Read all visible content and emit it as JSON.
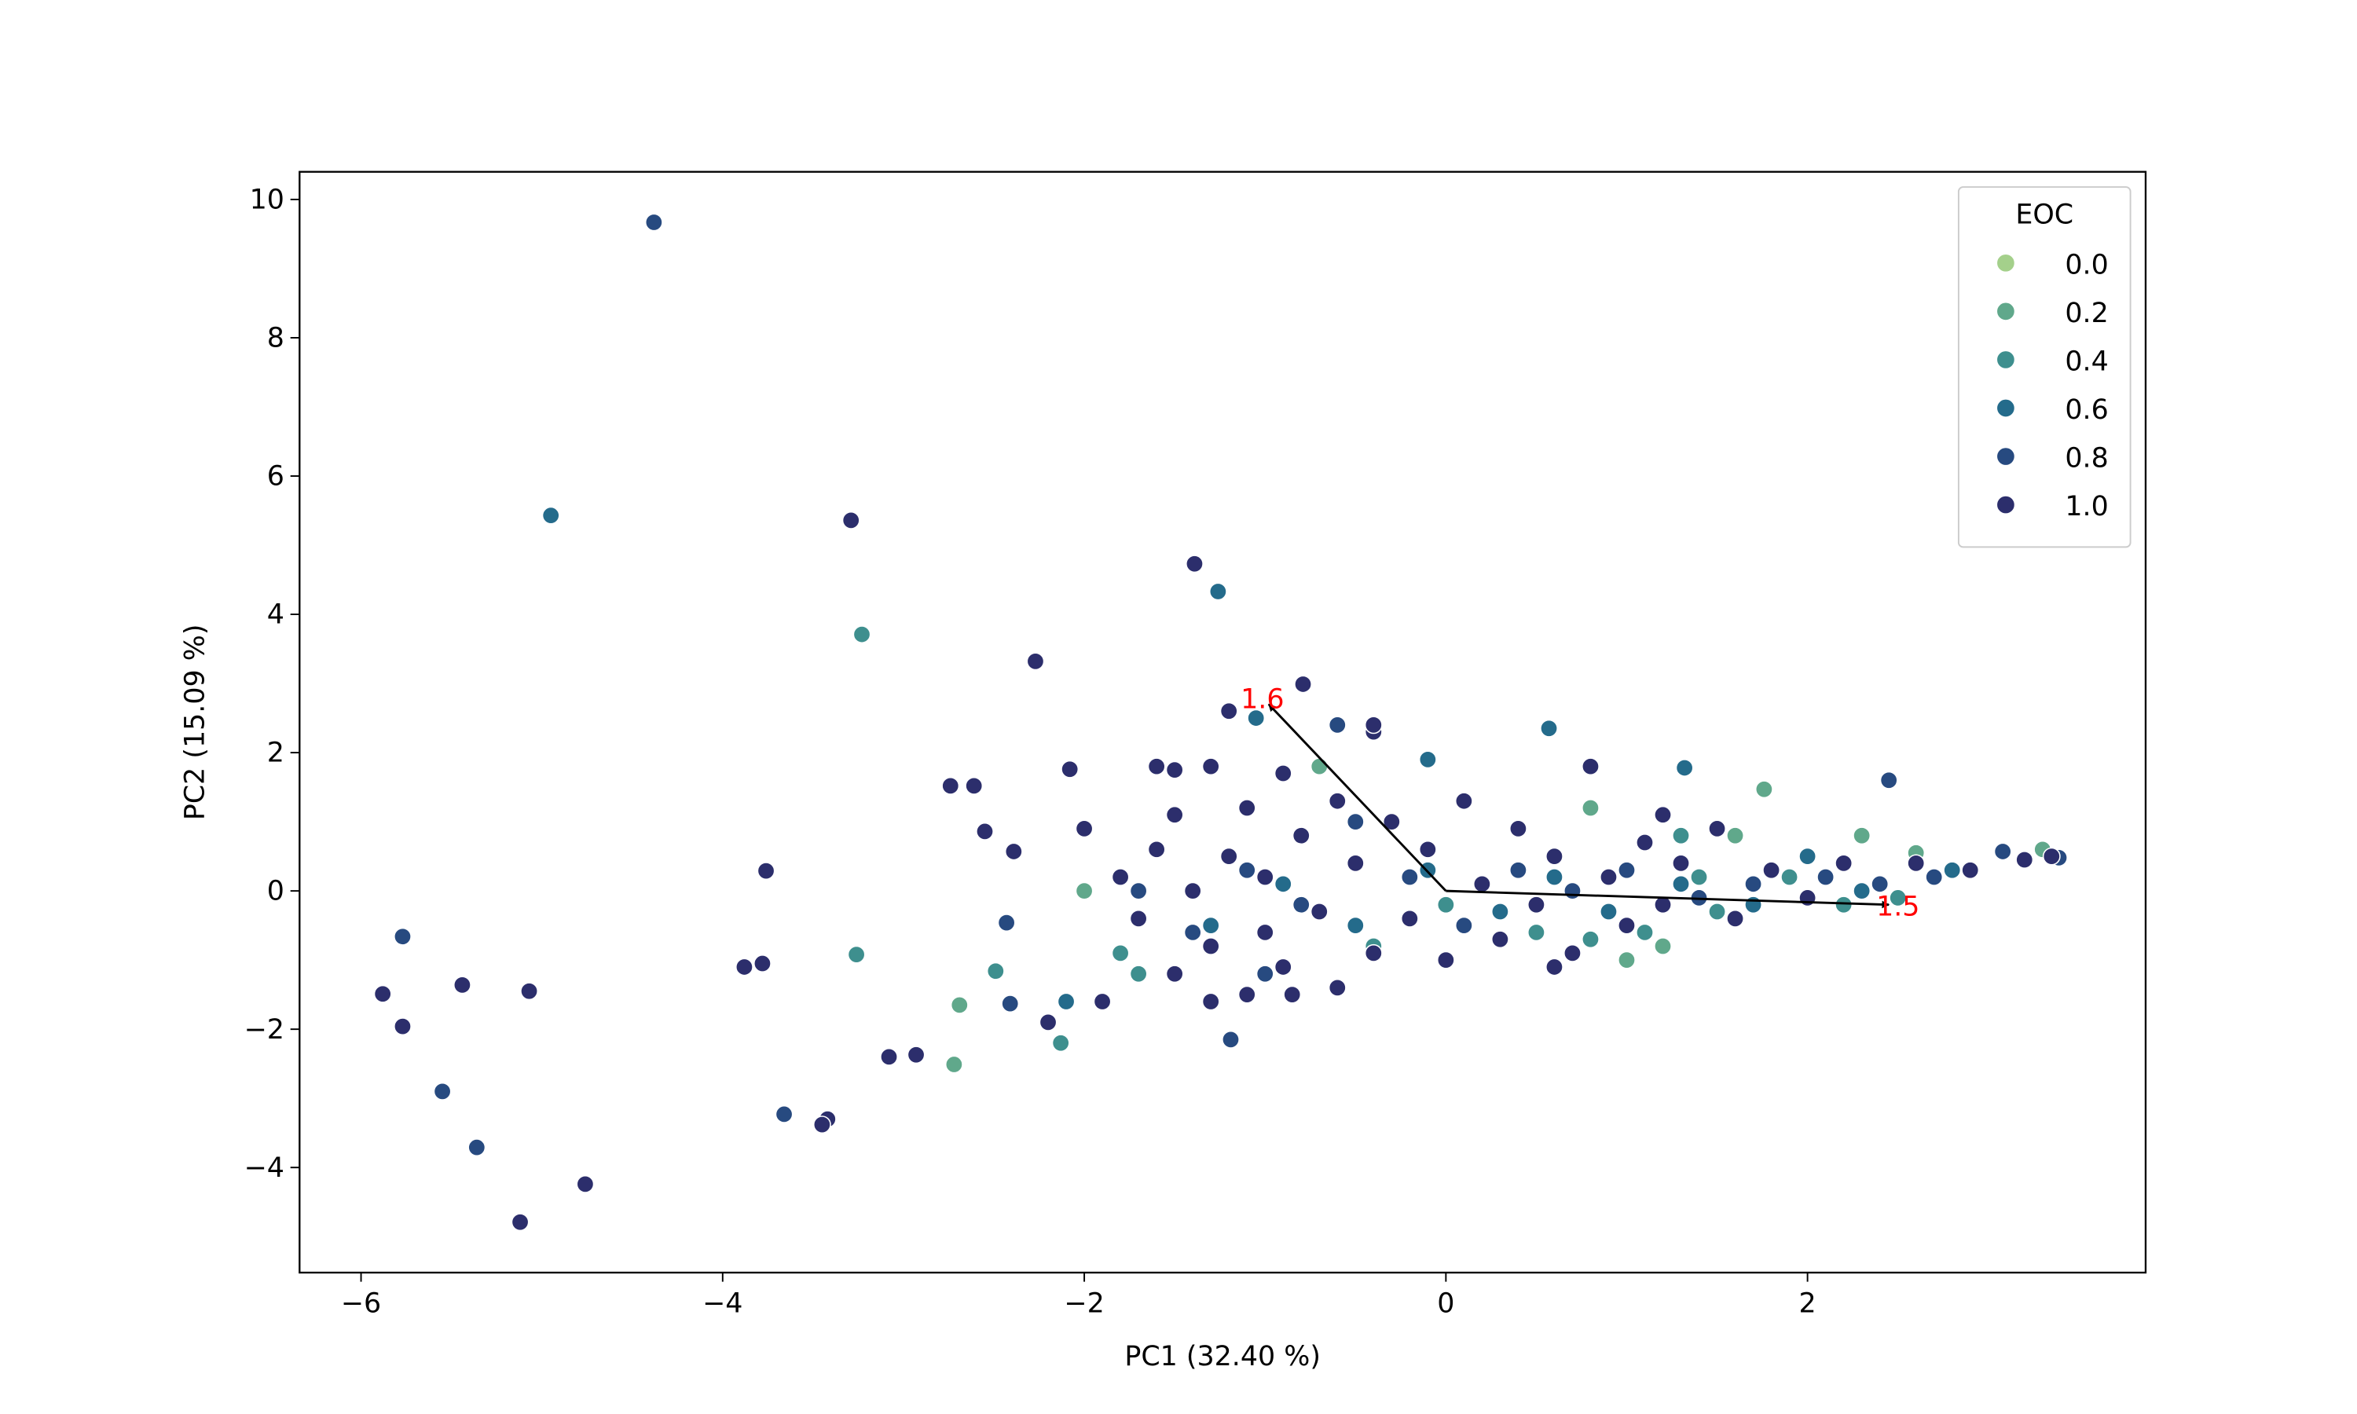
{
  "chart_data": {
    "type": "scatter",
    "x_label": "PC1 (32.40 %)",
    "y_label": "PC2 (15.09 %)",
    "xlim": [
      -6.34,
      3.87
    ],
    "ylim": [
      -5.52,
      10.4
    ],
    "xticks": [
      {
        "value": -6,
        "label": "−6"
      },
      {
        "value": -4,
        "label": "−4"
      },
      {
        "value": -2,
        "label": "−2"
      },
      0,
      2
    ],
    "yticks": [
      {
        "value": -4,
        "label": "−4"
      },
      {
        "value": -2,
        "label": "−2"
      },
      0,
      2,
      4,
      6,
      8,
      10
    ],
    "grid": false,
    "legend": {
      "title": "EOC",
      "corner": "upper right"
    },
    "series": [
      {
        "name": "0.0",
        "color": "#a4d08b",
        "x": [],
        "y": []
      },
      {
        "name": "0.2",
        "color": "#60a88b",
        "x": [
          -2.72,
          -2.69,
          1.76,
          1.0,
          1.6,
          2.3,
          3.3,
          2.9,
          -2.0,
          0.8,
          -0.7,
          2.6,
          1.2
        ],
        "y": [
          -2.51,
          -1.65,
          1.47,
          -1.0,
          0.8,
          0.8,
          0.6,
          0.3,
          0.0,
          1.2,
          1.8,
          0.55,
          -0.8
        ]
      },
      {
        "name": "0.4",
        "color": "#3e8f8e",
        "x": [
          -3.23,
          -3.26,
          -2.49,
          -2.13,
          -0.4,
          0.0,
          0.5,
          0.8,
          1.1,
          1.4,
          1.5,
          1.9,
          2.2,
          2.5,
          1.3,
          -1.8,
          -1.7
        ],
        "y": [
          3.71,
          -0.92,
          -1.16,
          -2.2,
          -0.8,
          -0.2,
          -0.6,
          -0.7,
          -0.6,
          0.2,
          -0.3,
          0.2,
          -0.2,
          -0.1,
          0.8,
          -0.9,
          -1.2
        ]
      },
      {
        "name": "0.6",
        "color": "#246b8b",
        "x": [
          -4.95,
          -1.26,
          0.57,
          1.32,
          -1.3,
          -0.9,
          -0.5,
          -0.1,
          0.3,
          0.6,
          0.9,
          1.3,
          1.7,
          2.0,
          2.3,
          2.8,
          -1.05,
          -2.1,
          -0.1
        ],
        "y": [
          5.43,
          4.33,
          2.35,
          1.78,
          -0.5,
          0.1,
          -0.5,
          0.3,
          -0.3,
          0.2,
          -0.3,
          0.1,
          -0.2,
          0.5,
          0.0,
          0.3,
          2.5,
          -1.6,
          1.9
        ]
      },
      {
        "name": "0.8",
        "color": "#274a80",
        "x": [
          -4.38,
          -5.77,
          -5.55,
          -5.36,
          -3.66,
          -2.43,
          -2.41,
          -1.19,
          2.45,
          3.39,
          3.08,
          -1.7,
          -1.4,
          -1.1,
          -0.8,
          -0.5,
          -0.2,
          0.1,
          0.4,
          0.7,
          1.0,
          1.4,
          1.7,
          2.1,
          2.4,
          2.7,
          -0.6,
          -1.0
        ],
        "y": [
          9.67,
          -0.66,
          -2.9,
          -3.71,
          -3.23,
          -0.46,
          -1.63,
          -2.15,
          1.6,
          0.48,
          0.57,
          0.0,
          -0.6,
          0.3,
          -0.2,
          1.0,
          0.2,
          -0.5,
          0.3,
          0.0,
          0.3,
          -0.1,
          0.1,
          0.2,
          0.1,
          0.2,
          2.4,
          -1.2
        ]
      },
      {
        "name": "1.0",
        "color": "#2c2e6c",
        "x": [
          -3.29,
          -1.39,
          -2.27,
          -0.79,
          -2.74,
          -2.61,
          -2.08,
          -2.55,
          -2.39,
          -3.76,
          -5.88,
          -5.44,
          -5.07,
          -5.77,
          -3.88,
          -3.78,
          -4.76,
          -5.12,
          -3.42,
          -3.45,
          -3.08,
          -2.93,
          -1.8,
          -1.7,
          -1.6,
          -1.5,
          -1.5,
          -1.4,
          -1.3,
          -1.3,
          -1.2,
          -1.1,
          -1.1,
          -1.0,
          -1.0,
          -0.9,
          -0.9,
          -0.8,
          -0.7,
          -0.6,
          -0.6,
          -0.5,
          -0.4,
          -0.4,
          -0.3,
          -0.2,
          -0.1,
          0.0,
          0.1,
          0.2,
          0.3,
          0.4,
          0.5,
          0.6,
          0.7,
          0.8,
          0.9,
          1.0,
          1.1,
          1.2,
          1.3,
          1.5,
          1.6,
          1.8,
          2.0,
          2.2,
          2.6,
          2.9,
          3.2,
          3.35,
          -2.0,
          -1.9,
          -2.2,
          -1.3,
          -0.85,
          -0.4,
          0.6,
          1.2,
          -1.6,
          -1.5,
          -1.2
        ],
        "y": [
          5.36,
          4.73,
          3.32,
          2.99,
          1.52,
          1.52,
          1.76,
          0.86,
          0.57,
          0.29,
          -1.49,
          -1.36,
          -1.45,
          -1.96,
          -1.1,
          -1.05,
          -4.24,
          -4.79,
          -3.3,
          -3.38,
          -2.4,
          -2.37,
          0.2,
          -0.4,
          0.6,
          -1.2,
          1.1,
          0.0,
          1.8,
          -0.8,
          0.5,
          -1.5,
          1.2,
          0.2,
          -0.6,
          1.7,
          -1.1,
          0.8,
          -0.3,
          1.3,
          -1.4,
          0.4,
          -0.9,
          2.3,
          1.0,
          -0.4,
          0.6,
          -1.0,
          1.3,
          0.1,
          -0.7,
          0.9,
          -0.2,
          0.5,
          -0.9,
          1.8,
          0.2,
          -0.5,
          0.7,
          -0.2,
          0.4,
          0.9,
          -0.4,
          0.3,
          -0.1,
          0.4,
          0.4,
          0.3,
          0.45,
          0.5,
          0.9,
          -1.6,
          -1.9,
          -1.6,
          -1.5,
          2.4,
          -1.1,
          1.1,
          1.8,
          1.75,
          2.6
        ]
      }
    ],
    "arrows": [
      {
        "label": "1.6",
        "x": -0.98,
        "y": 2.7
      },
      {
        "label": "1.5",
        "x": 2.45,
        "y": -0.2
      }
    ]
  }
}
